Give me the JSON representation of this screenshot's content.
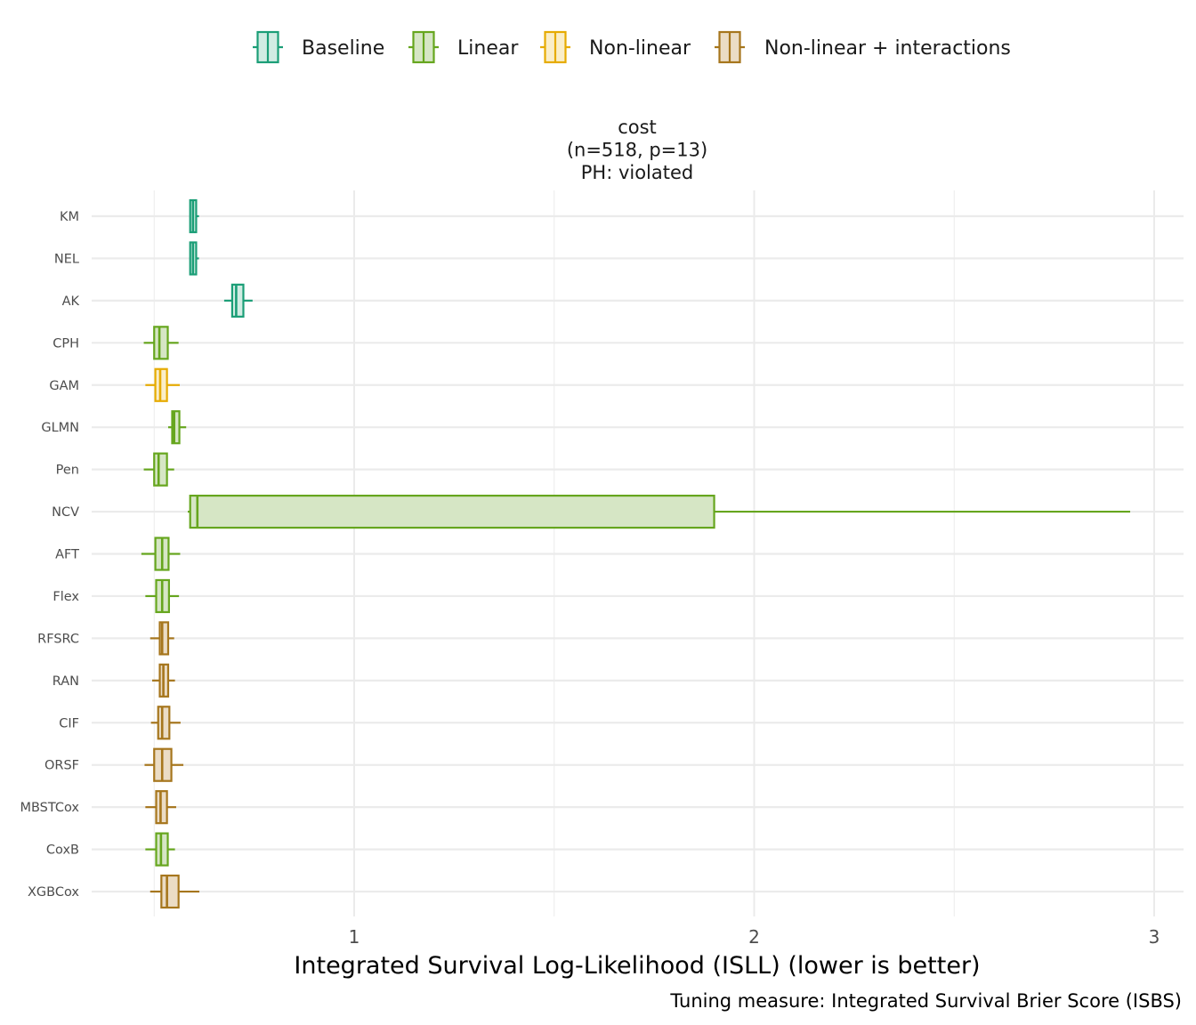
{
  "chart_data": {
    "type": "boxplot",
    "facet_title": [
      "cost",
      "(n=518, p=13)",
      "PH: violated"
    ],
    "xlabel": "Integrated Survival Log-Likelihood (ISLL) (lower is better)",
    "caption": "Tuning measure: Integrated Survival Brier Score (ISBS)",
    "xlim": [
      0.45,
      3.07
    ],
    "x_ticks": [
      1,
      2,
      3
    ],
    "x_tick_labels": [
      "1",
      "2",
      "3"
    ],
    "grid": true,
    "legend_position": "top",
    "legend": [
      {
        "name": "Baseline",
        "color": "#1b9e77",
        "fill": "#d1ece3"
      },
      {
        "name": "Linear",
        "color": "#66a61e",
        "fill": "#d6e6c5"
      },
      {
        "name": "Non-linear",
        "color": "#e6ab02",
        "fill": "#faeec9"
      },
      {
        "name": "Non-linear + interactions",
        "color": "#a6761d",
        "fill": "#ebdcc5"
      }
    ],
    "categories": [
      "KM",
      "NEL",
      "AK",
      "CPH",
      "GAM",
      "GLMN",
      "Pen",
      "NCV",
      "AFT",
      "Flex",
      "RFSRC",
      "RAN",
      "CIF",
      "ORSF",
      "MBSTCox",
      "CoxB",
      "XGBCox"
    ],
    "boxes": [
      {
        "label": "KM",
        "group": "Baseline",
        "whisker_low": 0.59,
        "q1": 0.59,
        "median": 0.597,
        "q3": 0.605,
        "whisker_high": 0.612
      },
      {
        "label": "NEL",
        "group": "Baseline",
        "whisker_low": 0.59,
        "q1": 0.59,
        "median": 0.597,
        "q3": 0.605,
        "whisker_high": 0.612
      },
      {
        "label": "AK",
        "group": "Baseline",
        "whisker_low": 0.675,
        "q1": 0.695,
        "median": 0.705,
        "q3": 0.723,
        "whisker_high": 0.746
      },
      {
        "label": "CPH",
        "group": "Linear",
        "whisker_low": 0.474,
        "q1": 0.5,
        "median": 0.513,
        "q3": 0.534,
        "whisker_high": 0.561
      },
      {
        "label": "GAM",
        "group": "Non-linear",
        "whisker_low": 0.478,
        "q1": 0.503,
        "median": 0.515,
        "q3": 0.532,
        "whisker_high": 0.564
      },
      {
        "label": "GLMN",
        "group": "Linear",
        "whisker_low": 0.535,
        "q1": 0.545,
        "median": 0.55,
        "q3": 0.563,
        "whisker_high": 0.58
      },
      {
        "label": "Pen",
        "group": "Linear",
        "whisker_low": 0.474,
        "q1": 0.5,
        "median": 0.511,
        "q3": 0.532,
        "whisker_high": 0.55
      },
      {
        "label": "NCV",
        "group": "Linear",
        "whisker_low": 0.584,
        "q1": 0.59,
        "median": 0.608,
        "q3": 1.9,
        "whisker_high": 2.94
      },
      {
        "label": "AFT",
        "group": "Linear",
        "whisker_low": 0.468,
        "q1": 0.503,
        "median": 0.52,
        "q3": 0.536,
        "whisker_high": 0.565
      },
      {
        "label": "Flex",
        "group": "Linear",
        "whisker_low": 0.478,
        "q1": 0.505,
        "median": 0.52,
        "q3": 0.537,
        "whisker_high": 0.562
      },
      {
        "label": "RFSRC",
        "group": "Non-linear + interactions",
        "whisker_low": 0.49,
        "q1": 0.514,
        "median": 0.52,
        "q3": 0.535,
        "whisker_high": 0.55
      },
      {
        "label": "RAN",
        "group": "Non-linear + interactions",
        "whisker_low": 0.495,
        "q1": 0.514,
        "median": 0.523,
        "q3": 0.535,
        "whisker_high": 0.552
      },
      {
        "label": "CIF",
        "group": "Non-linear + interactions",
        "whisker_low": 0.492,
        "q1": 0.51,
        "median": 0.52,
        "q3": 0.538,
        "whisker_high": 0.566
      },
      {
        "label": "ORSF",
        "group": "Non-linear + interactions",
        "whisker_low": 0.476,
        "q1": 0.5,
        "median": 0.52,
        "q3": 0.543,
        "whisker_high": 0.573
      },
      {
        "label": "MBSTCox",
        "group": "Non-linear + interactions",
        "whisker_low": 0.478,
        "q1": 0.505,
        "median": 0.516,
        "q3": 0.532,
        "whisker_high": 0.555
      },
      {
        "label": "CoxB",
        "group": "Linear",
        "whisker_low": 0.478,
        "q1": 0.505,
        "median": 0.517,
        "q3": 0.534,
        "whisker_high": 0.552
      },
      {
        "label": "XGBCox",
        "group": "Non-linear + interactions",
        "whisker_low": 0.49,
        "q1": 0.518,
        "median": 0.532,
        "q3": 0.561,
        "whisker_high": 0.613
      }
    ]
  }
}
